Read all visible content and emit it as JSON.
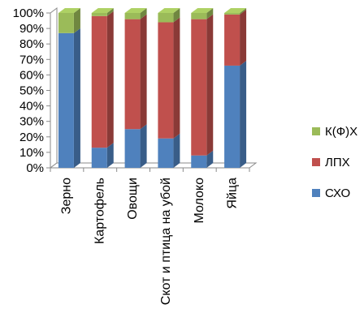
{
  "chart_data": {
    "type": "bar",
    "stacked": true,
    "percent": true,
    "three_d": true,
    "categories": [
      "Зерно",
      "Картофель",
      "Овощи",
      "Скот и птица на убой",
      "Молоко",
      "Яйца"
    ],
    "series": [
      {
        "name": "СХО",
        "color": "#4f81bd",
        "values": [
          87,
          13,
          25,
          19,
          8,
          66
        ]
      },
      {
        "name": "ЛПХ",
        "color": "#c0504d",
        "values": [
          0,
          85,
          71,
          75,
          88,
          33
        ]
      },
      {
        "name": "К(Ф)Х",
        "color": "#9bbb59",
        "values": [
          13,
          2,
          4,
          6,
          4,
          1
        ]
      }
    ],
    "y_ticks": [
      "0%",
      "10%",
      "20%",
      "30%",
      "40%",
      "50%",
      "60%",
      "70%",
      "80%",
      "90%",
      "100%"
    ],
    "ylim": [
      0,
      100
    ],
    "grid": false,
    "legend_position": "right"
  }
}
